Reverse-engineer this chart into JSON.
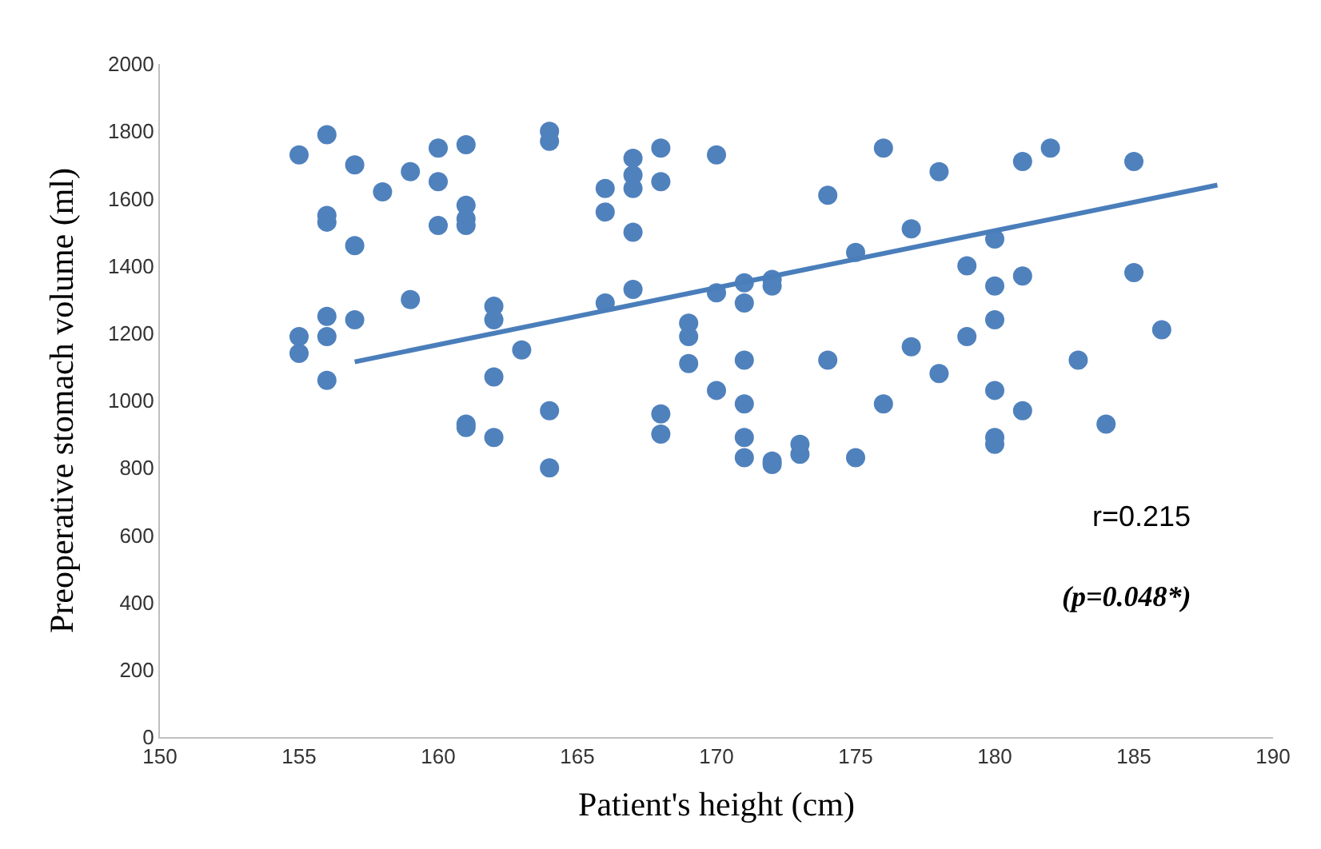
{
  "chart_data": {
    "type": "scatter",
    "xlabel": "Patient's height (cm)",
    "ylabel": "Preoperative stomach volume (ml)",
    "xlim": [
      150,
      190
    ],
    "xticks": [
      150,
      155,
      160,
      165,
      170,
      175,
      180,
      185,
      190
    ],
    "ylim": [
      0,
      2000
    ],
    "yticks": [
      0,
      200,
      400,
      600,
      800,
      1000,
      1200,
      1400,
      1600,
      1800,
      2000
    ],
    "grid": false,
    "legend": false,
    "annotations": [
      "r=0.215",
      "(p=0.048*)"
    ],
    "series": [
      {
        "color": "#4f81bd",
        "marker": "circle",
        "x": [
          155,
          155,
          155,
          156,
          156,
          156,
          156,
          156,
          156,
          157,
          157,
          157,
          158,
          159,
          159,
          160,
          160,
          160,
          161,
          161,
          161,
          161,
          161,
          161,
          162,
          162,
          162,
          162,
          163,
          164,
          164,
          164,
          164,
          166,
          166,
          166,
          167,
          167,
          167,
          167,
          167,
          168,
          168,
          168,
          168,
          169,
          169,
          169,
          170,
          170,
          170,
          171,
          171,
          171,
          171,
          171,
          171,
          172,
          172,
          172,
          172,
          173,
          173,
          174,
          174,
          175,
          175,
          176,
          176,
          177,
          177,
          178,
          178,
          179,
          179,
          180,
          180,
          180,
          180,
          180,
          180,
          181,
          181,
          181,
          182,
          183,
          184,
          185,
          185,
          186
        ],
        "values": [
          1730,
          1190,
          1140,
          1790,
          1550,
          1530,
          1250,
          1190,
          1060,
          1700,
          1460,
          1240,
          1620,
          1680,
          1300,
          1750,
          1650,
          1520,
          1760,
          1580,
          1540,
          1520,
          930,
          920,
          1280,
          1240,
          1070,
          890,
          1150,
          1800,
          1770,
          970,
          800,
          1630,
          1560,
          1290,
          1720,
          1670,
          1630,
          1500,
          1330,
          1750,
          1650,
          960,
          900,
          1230,
          1190,
          1110,
          1730,
          1320,
          1030,
          1350,
          1290,
          1120,
          990,
          890,
          830,
          1360,
          1340,
          820,
          810,
          870,
          840,
          1610,
          1120,
          1440,
          830,
          1750,
          990,
          1510,
          1160,
          1680,
          1080,
          1400,
          1190,
          1480,
          1340,
          1240,
          1030,
          890,
          870,
          1710,
          1370,
          970,
          1750,
          1120,
          930,
          1710,
          1380,
          1210
        ]
      },
      {
        "type": "line",
        "color": "#4a7ebb",
        "line_style": "solid",
        "marker": "none",
        "x": [
          157,
          188
        ],
        "values": [
          1115,
          1640
        ]
      }
    ]
  }
}
